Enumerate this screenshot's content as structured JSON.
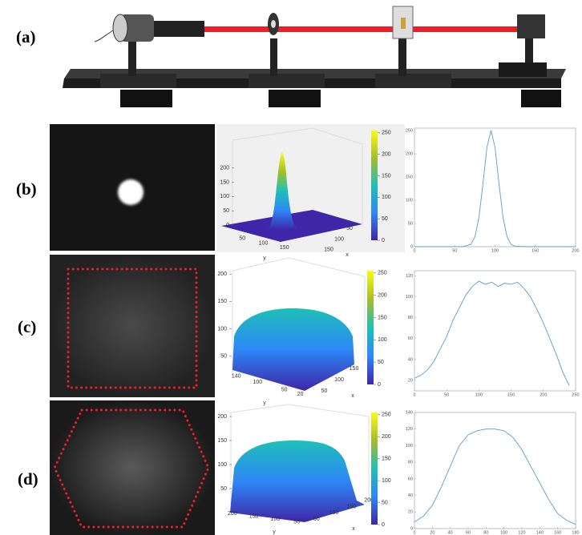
{
  "labels": {
    "a": "(a)",
    "b": "(b)",
    "c": "(c)",
    "d": "(d)"
  },
  "chart_data": [
    {
      "type": "surface3d",
      "xlabel": "x",
      "ylabel": "y",
      "xlim": [
        0,
        200
      ],
      "ylim": [
        0,
        200
      ],
      "zlim": [
        0,
        250
      ],
      "xticks": [
        50,
        100,
        150
      ],
      "yticks": [
        50,
        100,
        150
      ],
      "zticks": [
        0,
        50,
        100,
        150,
        200
      ],
      "clim": [
        0,
        255
      ],
      "cticks": [
        0,
        50,
        100,
        150,
        200,
        250
      ],
      "colormap": [
        "#3e26a8",
        "#2e87f7",
        "#1dc0b7",
        "#a5be27",
        "#f9fb15"
      ]
    },
    {
      "type": "line",
      "color": "#5b9bd5",
      "xlim": [
        0,
        200
      ],
      "ylim": [
        0,
        255
      ],
      "xticks": [
        0,
        50,
        100,
        150,
        200
      ],
      "yticks": [
        0,
        50,
        100,
        150,
        200,
        250
      ],
      "x": [
        0,
        20,
        40,
        60,
        70,
        75,
        80,
        85,
        90,
        95,
        100,
        105,
        110,
        115,
        120,
        125,
        140,
        160,
        180,
        200
      ],
      "values": [
        0,
        0,
        0,
        0,
        5,
        21,
        62,
        135,
        214,
        250,
        214,
        135,
        62,
        21,
        5,
        1,
        0,
        0,
        0,
        0
      ]
    },
    {
      "type": "surface3d",
      "xlabel": "x",
      "ylabel": "y",
      "xlim": [
        0,
        200
      ],
      "ylim": [
        0,
        150
      ],
      "zlim": [
        0,
        250
      ],
      "xticks": [
        50,
        100,
        150
      ],
      "yticks": [
        20,
        50,
        100,
        140
      ],
      "zticks": [
        50,
        100,
        150,
        200
      ],
      "clim": [
        0,
        255
      ],
      "cticks": [
        0,
        50,
        100,
        150,
        200,
        250
      ],
      "colormap": [
        "#3e26a8",
        "#2e87f7",
        "#1dc0b7",
        "#a5be27",
        "#f9fb15"
      ]
    },
    {
      "type": "line",
      "color": "#5b9bd5",
      "xlim": [
        0,
        250
      ],
      "ylim": [
        10,
        125
      ],
      "xticks": [
        0,
        50,
        100,
        150,
        200,
        250
      ],
      "yticks": [
        20,
        40,
        60,
        80,
        100,
        120
      ],
      "x": [
        0,
        10,
        20,
        30,
        40,
        50,
        60,
        70,
        80,
        90,
        100,
        110,
        120,
        130,
        140,
        150,
        160,
        170,
        180,
        190,
        200,
        210,
        220,
        230,
        240
      ],
      "values": [
        22,
        25,
        30,
        38,
        50,
        62,
        78,
        90,
        102,
        110,
        115,
        112,
        114,
        110,
        113,
        112,
        114,
        108,
        100,
        88,
        75,
        60,
        45,
        28,
        15
      ]
    },
    {
      "type": "surface3d",
      "xlabel": "x",
      "ylabel": "y",
      "xlim": [
        0,
        250
      ],
      "ylim": [
        0,
        250
      ],
      "zlim": [
        0,
        250
      ],
      "xticks": [
        50,
        100,
        150,
        200
      ],
      "yticks": [
        50,
        100,
        150,
        200
      ],
      "zticks": [
        50,
        100,
        150,
        200
      ],
      "clim": [
        0,
        255
      ],
      "cticks": [
        0,
        50,
        100,
        150,
        200,
        250
      ],
      "colormap": [
        "#3e26a8",
        "#2e87f7",
        "#1dc0b7",
        "#a5be27",
        "#f9fb15"
      ]
    },
    {
      "type": "line",
      "color": "#5b9bd5",
      "xlim": [
        0,
        180
      ],
      "ylim": [
        0,
        140
      ],
      "xticks": [
        0,
        20,
        40,
        60,
        80,
        100,
        120,
        140,
        160,
        180
      ],
      "yticks": [
        0,
        20,
        40,
        60,
        80,
        100,
        120,
        140
      ],
      "x": [
        0,
        10,
        20,
        30,
        40,
        50,
        60,
        70,
        80,
        90,
        100,
        110,
        120,
        130,
        140,
        150,
        160,
        170,
        180
      ],
      "values": [
        8,
        15,
        28,
        50,
        75,
        100,
        113,
        118,
        120,
        120,
        118,
        110,
        95,
        75,
        55,
        35,
        18,
        10,
        5
      ]
    }
  ]
}
